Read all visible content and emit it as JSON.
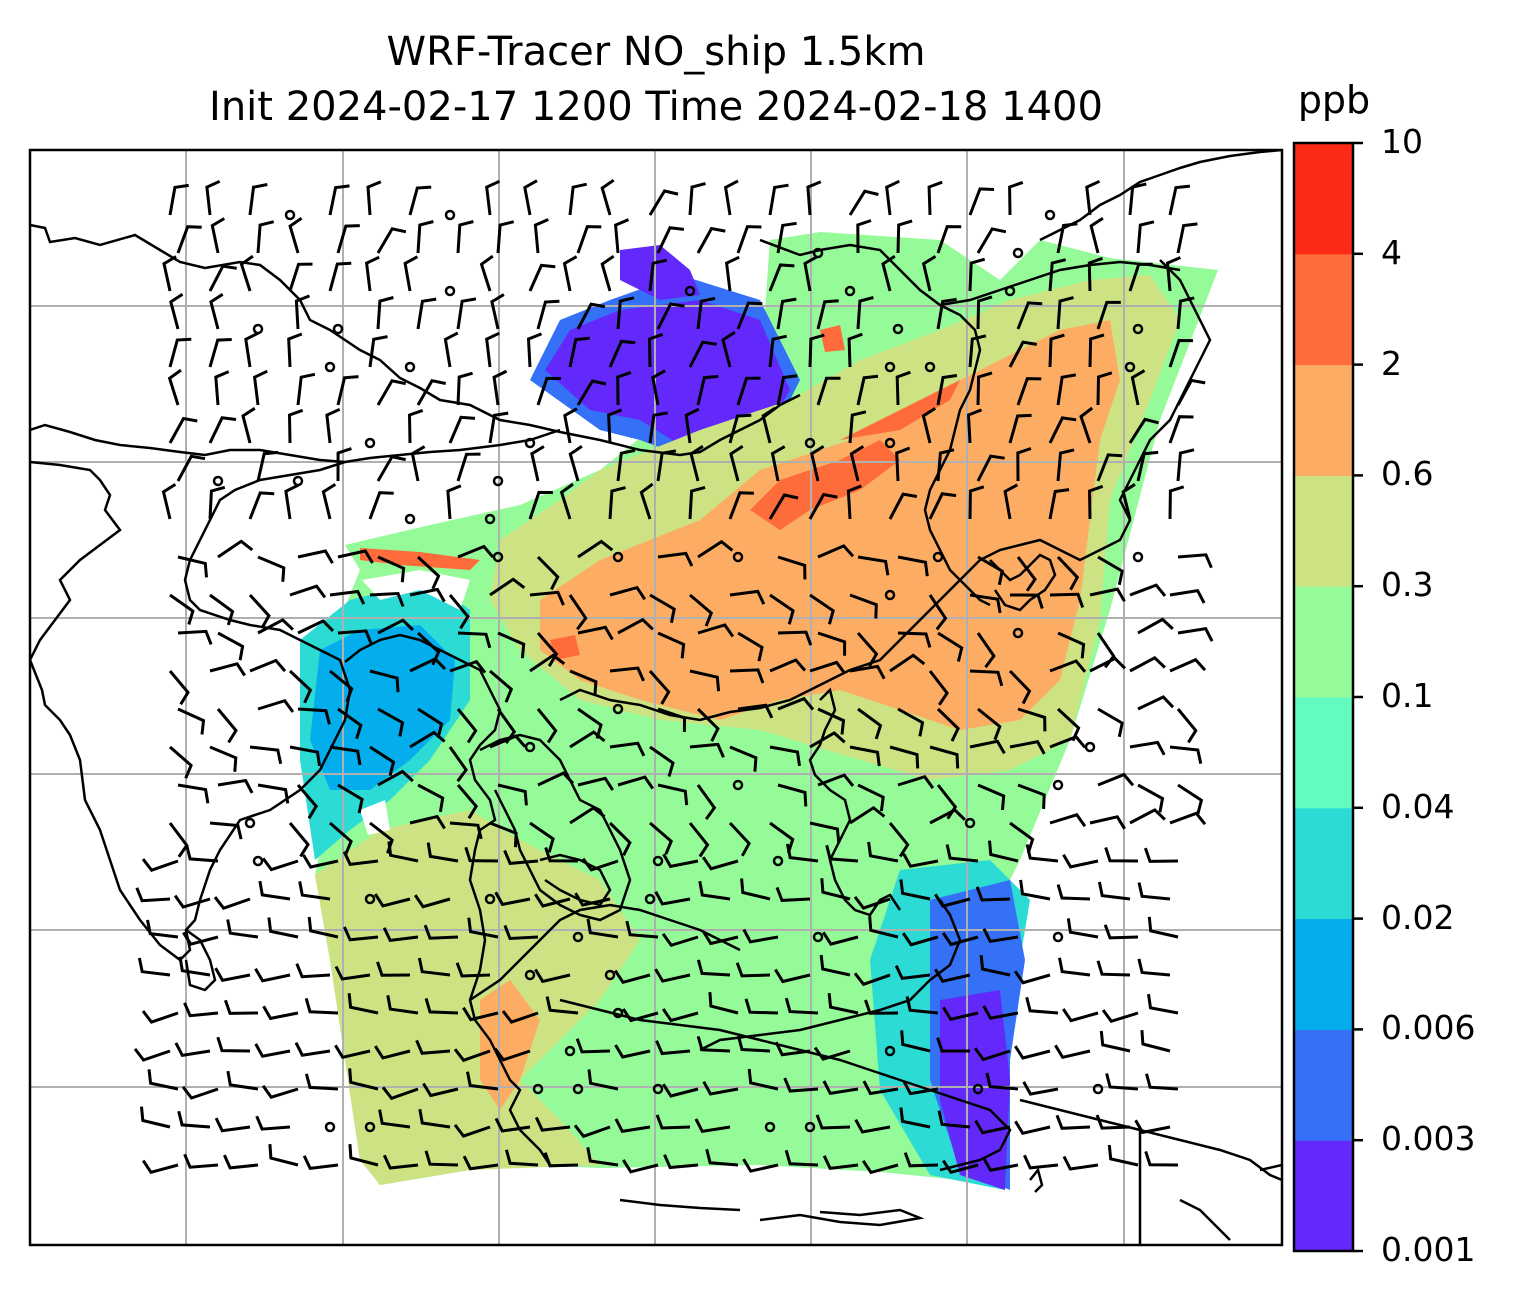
{
  "title_line1": "WRF-Tracer NO_ship 1.5km",
  "title_line2": "Init 2024-02-17 1200 Time 2024-02-18 1400",
  "colorbar": {
    "unit": "ppb",
    "ticks": [
      "10",
      "4",
      "2",
      "0.6",
      "0.3",
      "0.1",
      "0.04",
      "0.02",
      "0.006",
      "0.003",
      "0.001"
    ],
    "colors": [
      "#6229fa",
      "#3471f6",
      "#04adeb",
      "#2cdbd4",
      "#62fbc0",
      "#95fb98",
      "#cde383",
      "#fcad63",
      "#fe6c3b",
      "#fe2a18"
    ]
  },
  "map": {
    "field": "NO_ship tracer concentration",
    "gridlines": true,
    "coastlines": true,
    "wind_barbs": true
  }
}
